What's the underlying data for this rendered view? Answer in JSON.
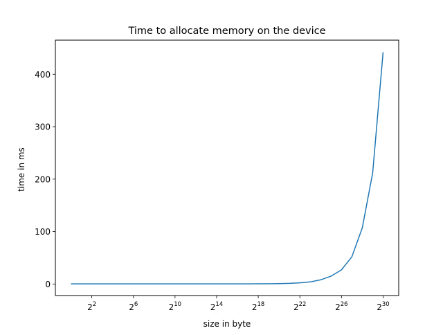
{
  "chart_data": {
    "type": "line",
    "title": "Time to allocate memory on the device",
    "xlabel": "size in byte",
    "ylabel": "time in ms",
    "x_scale": "log2",
    "x_ticks": [
      {
        "base": "2",
        "exp": "2"
      },
      {
        "base": "2",
        "exp": "6"
      },
      {
        "base": "2",
        "exp": "10"
      },
      {
        "base": "2",
        "exp": "14"
      },
      {
        "base": "2",
        "exp": "18"
      },
      {
        "base": "2",
        "exp": "22"
      },
      {
        "base": "2",
        "exp": "26"
      },
      {
        "base": "2",
        "exp": "30"
      }
    ],
    "y_ticks": [
      "0",
      "100",
      "200",
      "300",
      "400"
    ],
    "ylim": [
      -22,
      465
    ],
    "grid": false,
    "legend": "none",
    "colors": {
      "series": "#1f77b4",
      "axes": "#000000"
    },
    "series": [
      {
        "x": [
          1,
          2,
          4,
          8,
          16,
          32,
          64,
          128,
          256,
          512,
          1024,
          2048,
          4096,
          8192,
          16384,
          32768,
          65536,
          131072,
          262144,
          524288,
          1048576,
          2097152,
          4194304,
          8388608,
          16777216,
          33554432,
          67108864,
          134217728,
          268435456,
          536870912,
          1073741824
        ],
        "values": [
          0.3,
          0.3,
          0.3,
          0.3,
          0.3,
          0.3,
          0.3,
          0.3,
          0.3,
          0.3,
          0.3,
          0.3,
          0.3,
          0.3,
          0.3,
          0.3,
          0.3,
          0.3,
          0.4,
          0.5,
          0.7,
          1.2,
          2.2,
          4.0,
          8.0,
          15.0,
          27.0,
          52.0,
          107.0,
          212.0,
          442.0
        ]
      }
    ]
  }
}
